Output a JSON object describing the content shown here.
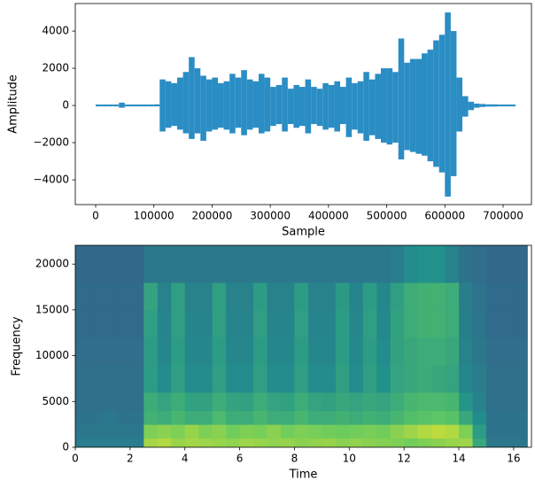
{
  "chart_data": [
    {
      "type": "envelope",
      "xlabel": "Sample",
      "ylabel": "Amplitude",
      "color": "#2a8dc4",
      "x": [
        0,
        10000,
        20000,
        30000,
        40000,
        50000,
        60000,
        70000,
        80000,
        90000,
        100000,
        110000,
        120000,
        130000,
        140000,
        150000,
        160000,
        170000,
        180000,
        190000,
        200000,
        210000,
        220000,
        230000,
        240000,
        250000,
        260000,
        270000,
        280000,
        290000,
        300000,
        310000,
        320000,
        330000,
        340000,
        350000,
        360000,
        370000,
        380000,
        390000,
        400000,
        410000,
        420000,
        430000,
        440000,
        450000,
        460000,
        470000,
        480000,
        490000,
        500000,
        510000,
        520000,
        530000,
        540000,
        550000,
        560000,
        570000,
        580000,
        590000,
        600000,
        610000,
        620000,
        630000,
        640000,
        650000,
        660000,
        670000,
        680000,
        690000,
        700000,
        710000,
        720000
      ],
      "y_max": [
        50,
        50,
        50,
        50,
        150,
        50,
        50,
        50,
        50,
        50,
        60,
        1400,
        1300,
        1200,
        1500,
        1800,
        2600,
        2000,
        1600,
        1400,
        1500,
        1200,
        1300,
        1700,
        1500,
        1900,
        1400,
        1300,
        1700,
        1500,
        1000,
        1100,
        1500,
        900,
        1100,
        1000,
        1400,
        1000,
        900,
        1200,
        1100,
        1300,
        1000,
        1500,
        1200,
        1300,
        1800,
        1400,
        1700,
        2000,
        2000,
        1800,
        3600,
        2300,
        2500,
        2500,
        2800,
        3000,
        3500,
        3800,
        5000,
        4000,
        1500,
        500,
        200,
        100,
        80,
        60,
        60,
        50,
        50,
        50,
        50
      ],
      "y_min": [
        -50,
        -50,
        -50,
        -50,
        -120,
        -50,
        -50,
        -50,
        -50,
        -50,
        -50,
        -1400,
        -1200,
        -1100,
        -1300,
        -1500,
        -1800,
        -1500,
        -1900,
        -1400,
        -1300,
        -1200,
        -1300,
        -1500,
        -1200,
        -1600,
        -1300,
        -1200,
        -1500,
        -1400,
        -1100,
        -1000,
        -1400,
        -1000,
        -1200,
        -1100,
        -1500,
        -1000,
        -1100,
        -1300,
        -1200,
        -1400,
        -1000,
        -1700,
        -1300,
        -1500,
        -1900,
        -1600,
        -1800,
        -2000,
        -2100,
        -2000,
        -2900,
        -2400,
        -2500,
        -2600,
        -2700,
        -3000,
        -3300,
        -3600,
        -4900,
        -3800,
        -1400,
        -600,
        -250,
        -120,
        -80,
        -60,
        -60,
        -50,
        -50,
        -50,
        -50
      ],
      "xlim": [
        -35000,
        748700
      ],
      "ylim": [
        -5330,
        5480
      ],
      "xticks": [
        0,
        100000,
        200000,
        300000,
        400000,
        500000,
        600000,
        700000
      ],
      "yticks": [
        {
          "value": -4000,
          "label": "−4000"
        },
        {
          "value": -2000,
          "label": "−2000"
        },
        0,
        2000,
        4000
      ]
    },
    {
      "type": "spectrogram",
      "xlabel": "Time",
      "ylabel": "Frequency",
      "colormap": [
        "#440154",
        "#3b528b",
        "#21918c",
        "#5ec962",
        "#fde725"
      ],
      "clim": [
        0,
        100
      ],
      "time_bins": [
        0,
        0.5,
        1,
        1.5,
        2,
        2.5,
        3,
        3.5,
        4,
        4.5,
        5,
        5.5,
        6,
        6.5,
        7,
        7.5,
        8,
        8.5,
        9,
        9.5,
        10,
        10.5,
        11,
        11.5,
        12,
        12.5,
        13,
        13.5,
        14,
        14.5,
        15,
        15.5,
        16,
        16.5
      ],
      "freq_bins": [
        0,
        1000,
        2500,
        4000,
        6000,
        9000,
        12000,
        15000,
        18000,
        22050
      ],
      "values": [
        [
          42,
          42,
          42,
          42,
          42,
          86,
          88,
          84,
          86,
          85,
          84,
          83,
          85,
          84,
          83,
          84,
          82,
          83,
          84,
          82,
          83,
          82,
          81,
          80,
          78,
          80,
          82,
          84,
          85,
          60,
          40,
          40,
          40
        ],
        [
          40,
          40,
          40,
          40,
          40,
          80,
          82,
          80,
          84,
          80,
          82,
          78,
          80,
          79,
          82,
          78,
          80,
          79,
          78,
          77,
          78,
          79,
          78,
          82,
          85,
          88,
          90,
          88,
          80,
          55,
          38,
          38,
          38
        ],
        [
          38,
          38,
          40,
          38,
          38,
          64,
          62,
          66,
          62,
          62,
          68,
          62,
          62,
          66,
          62,
          62,
          66,
          62,
          62,
          64,
          62,
          64,
          62,
          66,
          70,
          72,
          74,
          72,
          60,
          48,
          38,
          38,
          38
        ],
        [
          37,
          37,
          37,
          37,
          37,
          62,
          58,
          62,
          57,
          57,
          62,
          58,
          57,
          62,
          58,
          57,
          62,
          58,
          57,
          60,
          58,
          60,
          58,
          62,
          66,
          68,
          68,
          66,
          52,
          44,
          37,
          37,
          37
        ],
        [
          37,
          37,
          37,
          37,
          37,
          55,
          48,
          56,
          48,
          48,
          56,
          48,
          48,
          56,
          48,
          48,
          56,
          48,
          48,
          56,
          48,
          56,
          50,
          58,
          60,
          62,
          60,
          58,
          46,
          42,
          37,
          37,
          37
        ],
        [
          36,
          36,
          36,
          36,
          36,
          55,
          46,
          55,
          46,
          46,
          55,
          46,
          46,
          55,
          46,
          46,
          55,
          46,
          46,
          55,
          47,
          55,
          48,
          57,
          60,
          62,
          62,
          60,
          44,
          40,
          36,
          36,
          36
        ],
        [
          35,
          35,
          35,
          35,
          35,
          56,
          45,
          56,
          45,
          45,
          56,
          45,
          45,
          56,
          45,
          45,
          56,
          45,
          45,
          55,
          46,
          56,
          47,
          57,
          62,
          64,
          64,
          62,
          43,
          39,
          35,
          35,
          35
        ],
        [
          35,
          35,
          35,
          35,
          35,
          58,
          44,
          56,
          44,
          44,
          56,
          44,
          44,
          55,
          44,
          44,
          55,
          44,
          44,
          54,
          45,
          55,
          46,
          56,
          62,
          64,
          64,
          62,
          42,
          38,
          35,
          35,
          35
        ],
        [
          34,
          34,
          34,
          34,
          34,
          40,
          40,
          40,
          40,
          40,
          40,
          40,
          40,
          40,
          40,
          40,
          40,
          40,
          40,
          40,
          40,
          40,
          40,
          42,
          48,
          50,
          50,
          44,
          38,
          36,
          34,
          34,
          34
        ]
      ],
      "xlim": [
        0,
        16.65
      ],
      "ylim": [
        0,
        22050
      ],
      "xticks": [
        0,
        2,
        4,
        6,
        8,
        10,
        12,
        14,
        16
      ],
      "yticks": [
        0,
        5000,
        10000,
        15000,
        20000
      ]
    }
  ]
}
